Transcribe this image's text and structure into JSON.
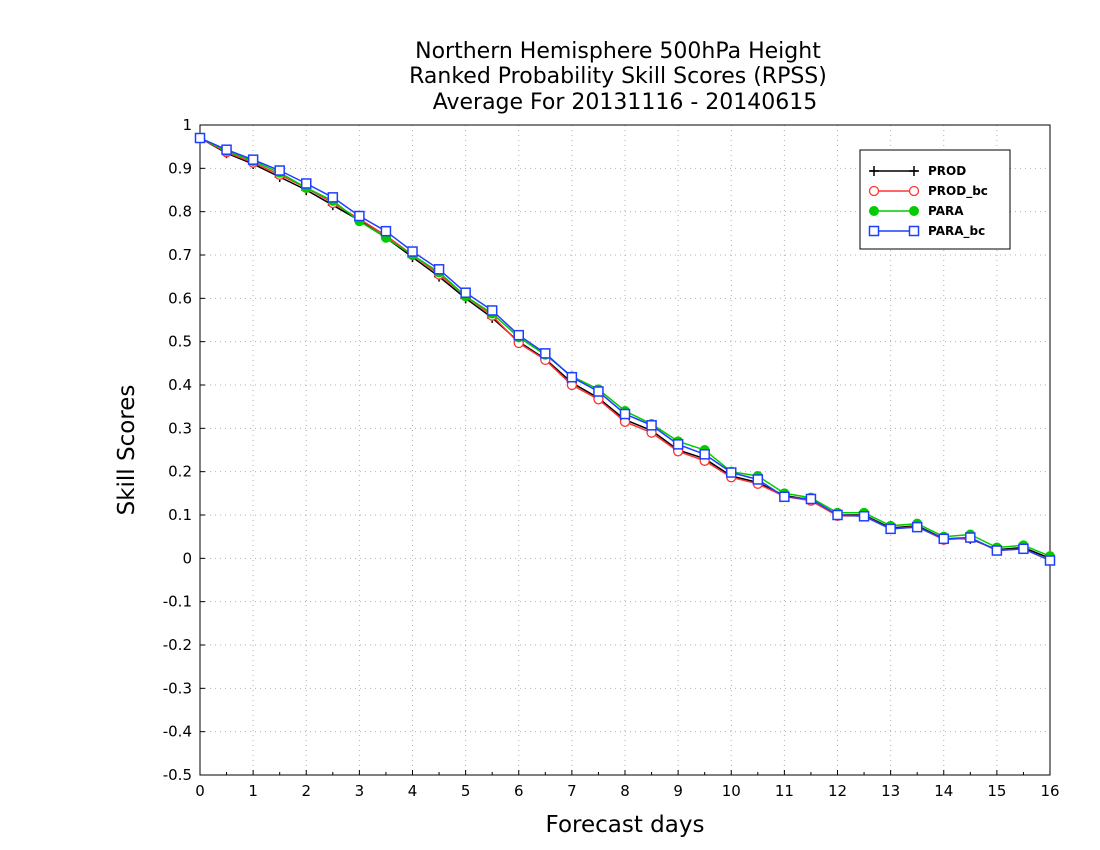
{
  "chart_data": {
    "type": "line",
    "title_lines": [
      "Northern Hemisphere 500hPa Height",
      "Ranked Probability Skill Scores (RPSS)",
      "Average For 20131116 - 20140615"
    ],
    "xlabel": "Forecast days",
    "ylabel": "Skill Scores",
    "xlim": [
      0,
      16
    ],
    "ylim": [
      -0.5,
      1
    ],
    "x_ticks": [
      0,
      1,
      2,
      3,
      4,
      5,
      6,
      7,
      8,
      9,
      10,
      11,
      12,
      13,
      14,
      15,
      16
    ],
    "y_ticks": [
      -0.5,
      -0.4,
      -0.3,
      -0.2,
      -0.1,
      0,
      0.1,
      0.2,
      0.3,
      0.4,
      0.5,
      0.6,
      0.7,
      0.8,
      0.9,
      1
    ],
    "y_tick_labels": [
      "-0.5",
      "-0.4",
      "-0.3",
      "-0.2",
      "-0.1",
      "0",
      "0.1",
      "0.2",
      "0.3",
      "0.4",
      "0.5",
      "0.6",
      "0.7",
      "0.8",
      "0.9",
      "1"
    ],
    "grid": true,
    "legend_position": "top-right",
    "x": [
      0,
      0.5,
      1,
      1.5,
      2,
      2.5,
      3,
      3.5,
      4,
      4.5,
      5,
      5.5,
      6,
      6.5,
      7,
      7.5,
      8,
      8.5,
      9,
      9.5,
      10,
      10.5,
      11,
      11.5,
      12,
      12.5,
      13,
      13.5,
      14,
      14.5,
      15,
      15.5,
      16
    ],
    "series": [
      {
        "name": "PROD",
        "color": "#000000",
        "marker": "plus",
        "values": [
          0.97,
          0.935,
          0.91,
          0.88,
          0.85,
          0.815,
          0.78,
          0.74,
          0.695,
          0.65,
          0.6,
          0.555,
          0.5,
          0.46,
          0.405,
          0.37,
          0.32,
          0.295,
          0.25,
          0.23,
          0.19,
          0.175,
          0.145,
          0.135,
          0.1,
          0.1,
          0.07,
          0.075,
          0.045,
          0.045,
          0.02,
          0.025,
          0.0
        ]
      },
      {
        "name": "PROD_bc",
        "color": "#ff3333",
        "marker": "circle-open",
        "values": [
          0.97,
          0.937,
          0.913,
          0.885,
          0.855,
          0.82,
          0.783,
          0.745,
          0.7,
          0.655,
          0.605,
          0.56,
          0.497,
          0.458,
          0.4,
          0.367,
          0.315,
          0.29,
          0.247,
          0.225,
          0.187,
          0.172,
          0.143,
          0.133,
          0.098,
          0.098,
          0.068,
          0.073,
          0.043,
          0.047,
          0.018,
          0.022,
          -0.005
        ]
      },
      {
        "name": "PARA",
        "color": "#00cc00",
        "marker": "circle-filled",
        "values": [
          0.97,
          0.94,
          0.917,
          0.89,
          0.855,
          0.825,
          0.778,
          0.74,
          0.7,
          0.66,
          0.605,
          0.565,
          0.51,
          0.47,
          0.42,
          0.39,
          0.34,
          0.31,
          0.27,
          0.25,
          0.2,
          0.19,
          0.15,
          0.14,
          0.105,
          0.105,
          0.075,
          0.08,
          0.05,
          0.055,
          0.025,
          0.03,
          0.005
        ]
      },
      {
        "name": "PARA_bc",
        "color": "#1f3fff",
        "marker": "square-open",
        "values": [
          0.97,
          0.943,
          0.92,
          0.895,
          0.865,
          0.833,
          0.79,
          0.755,
          0.708,
          0.667,
          0.613,
          0.572,
          0.515,
          0.473,
          0.418,
          0.385,
          0.333,
          0.307,
          0.263,
          0.24,
          0.198,
          0.182,
          0.142,
          0.137,
          0.1,
          0.097,
          0.068,
          0.072,
          0.045,
          0.048,
          0.018,
          0.022,
          -0.005
        ]
      }
    ]
  }
}
